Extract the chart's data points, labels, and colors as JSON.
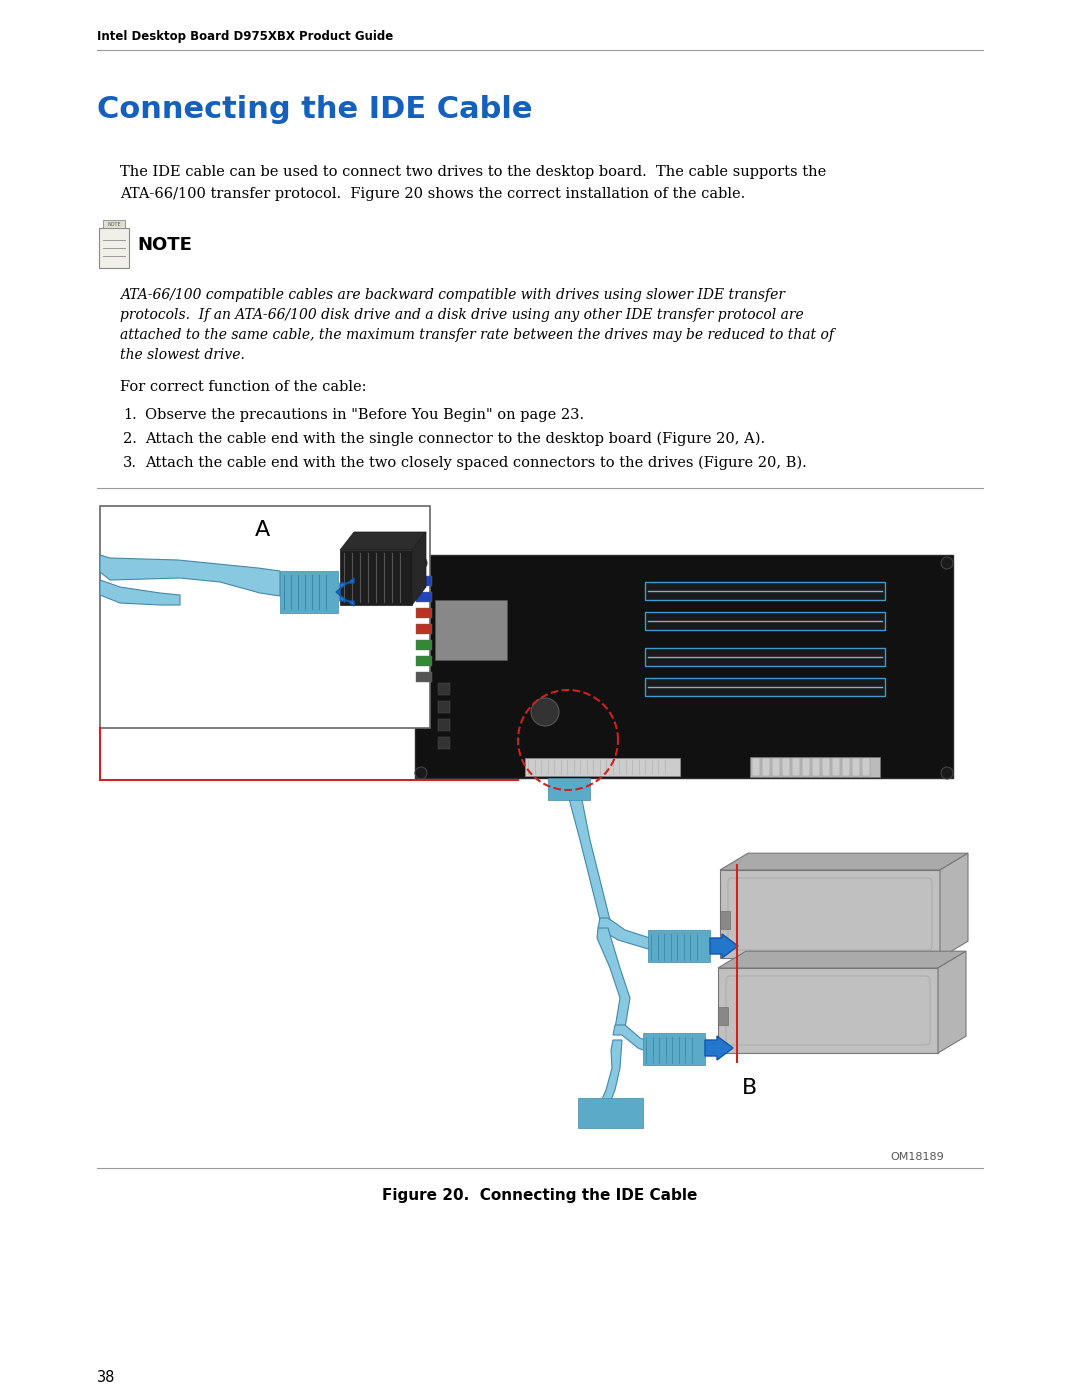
{
  "page_header": "Intel Desktop Board D975XBX Product Guide",
  "title": "Connecting the IDE Cable",
  "title_color": "#1560BD",
  "body_text_1a": "The IDE cable can be used to connect two drives to the desktop board.  The cable supports the",
  "body_text_1b": "ATA-66/100 transfer protocol.  Figure 20 shows the correct installation of the cable.",
  "note_label": "NOTE",
  "note_italic_line1": "ATA-66/100 compatible cables are backward compatible with drives using slower IDE transfer",
  "note_italic_line2": "protocols.  If an ATA-66/100 disk drive and a disk drive using any other IDE transfer protocol are",
  "note_italic_line3": "attached to the same cable, the maximum transfer rate between the drives may be reduced to that of",
  "note_italic_line4": "the slowest drive.",
  "body_text_2": "For correct function of the cable:",
  "list_item_1": "Observe the precautions in \"Before You Begin\" on page 23.",
  "list_item_2": "Attach the cable end with the single connector to the desktop board (Figure 20, A).",
  "list_item_3": "Attach the cable end with the two closely spaced connectors to the drives (Figure 20, B).",
  "figure_caption": "Figure 20.  Connecting the IDE Cable",
  "figure_id": "OM18189",
  "page_number": "38",
  "bg_color": "#ffffff",
  "text_color": "#000000",
  "header_color": "#000000",
  "rule_color": "#999999",
  "mb_bg": "#111111",
  "cable_blue": "#88C8E0",
  "cable_dark": "#4488AA",
  "arrow_blue": "#2277CC",
  "drive_gray": "#c0c0c0",
  "drive_dark": "#999999",
  "ram_blue": "#4499CC",
  "red_line": "#CC2222",
  "inset_border": "#666666"
}
